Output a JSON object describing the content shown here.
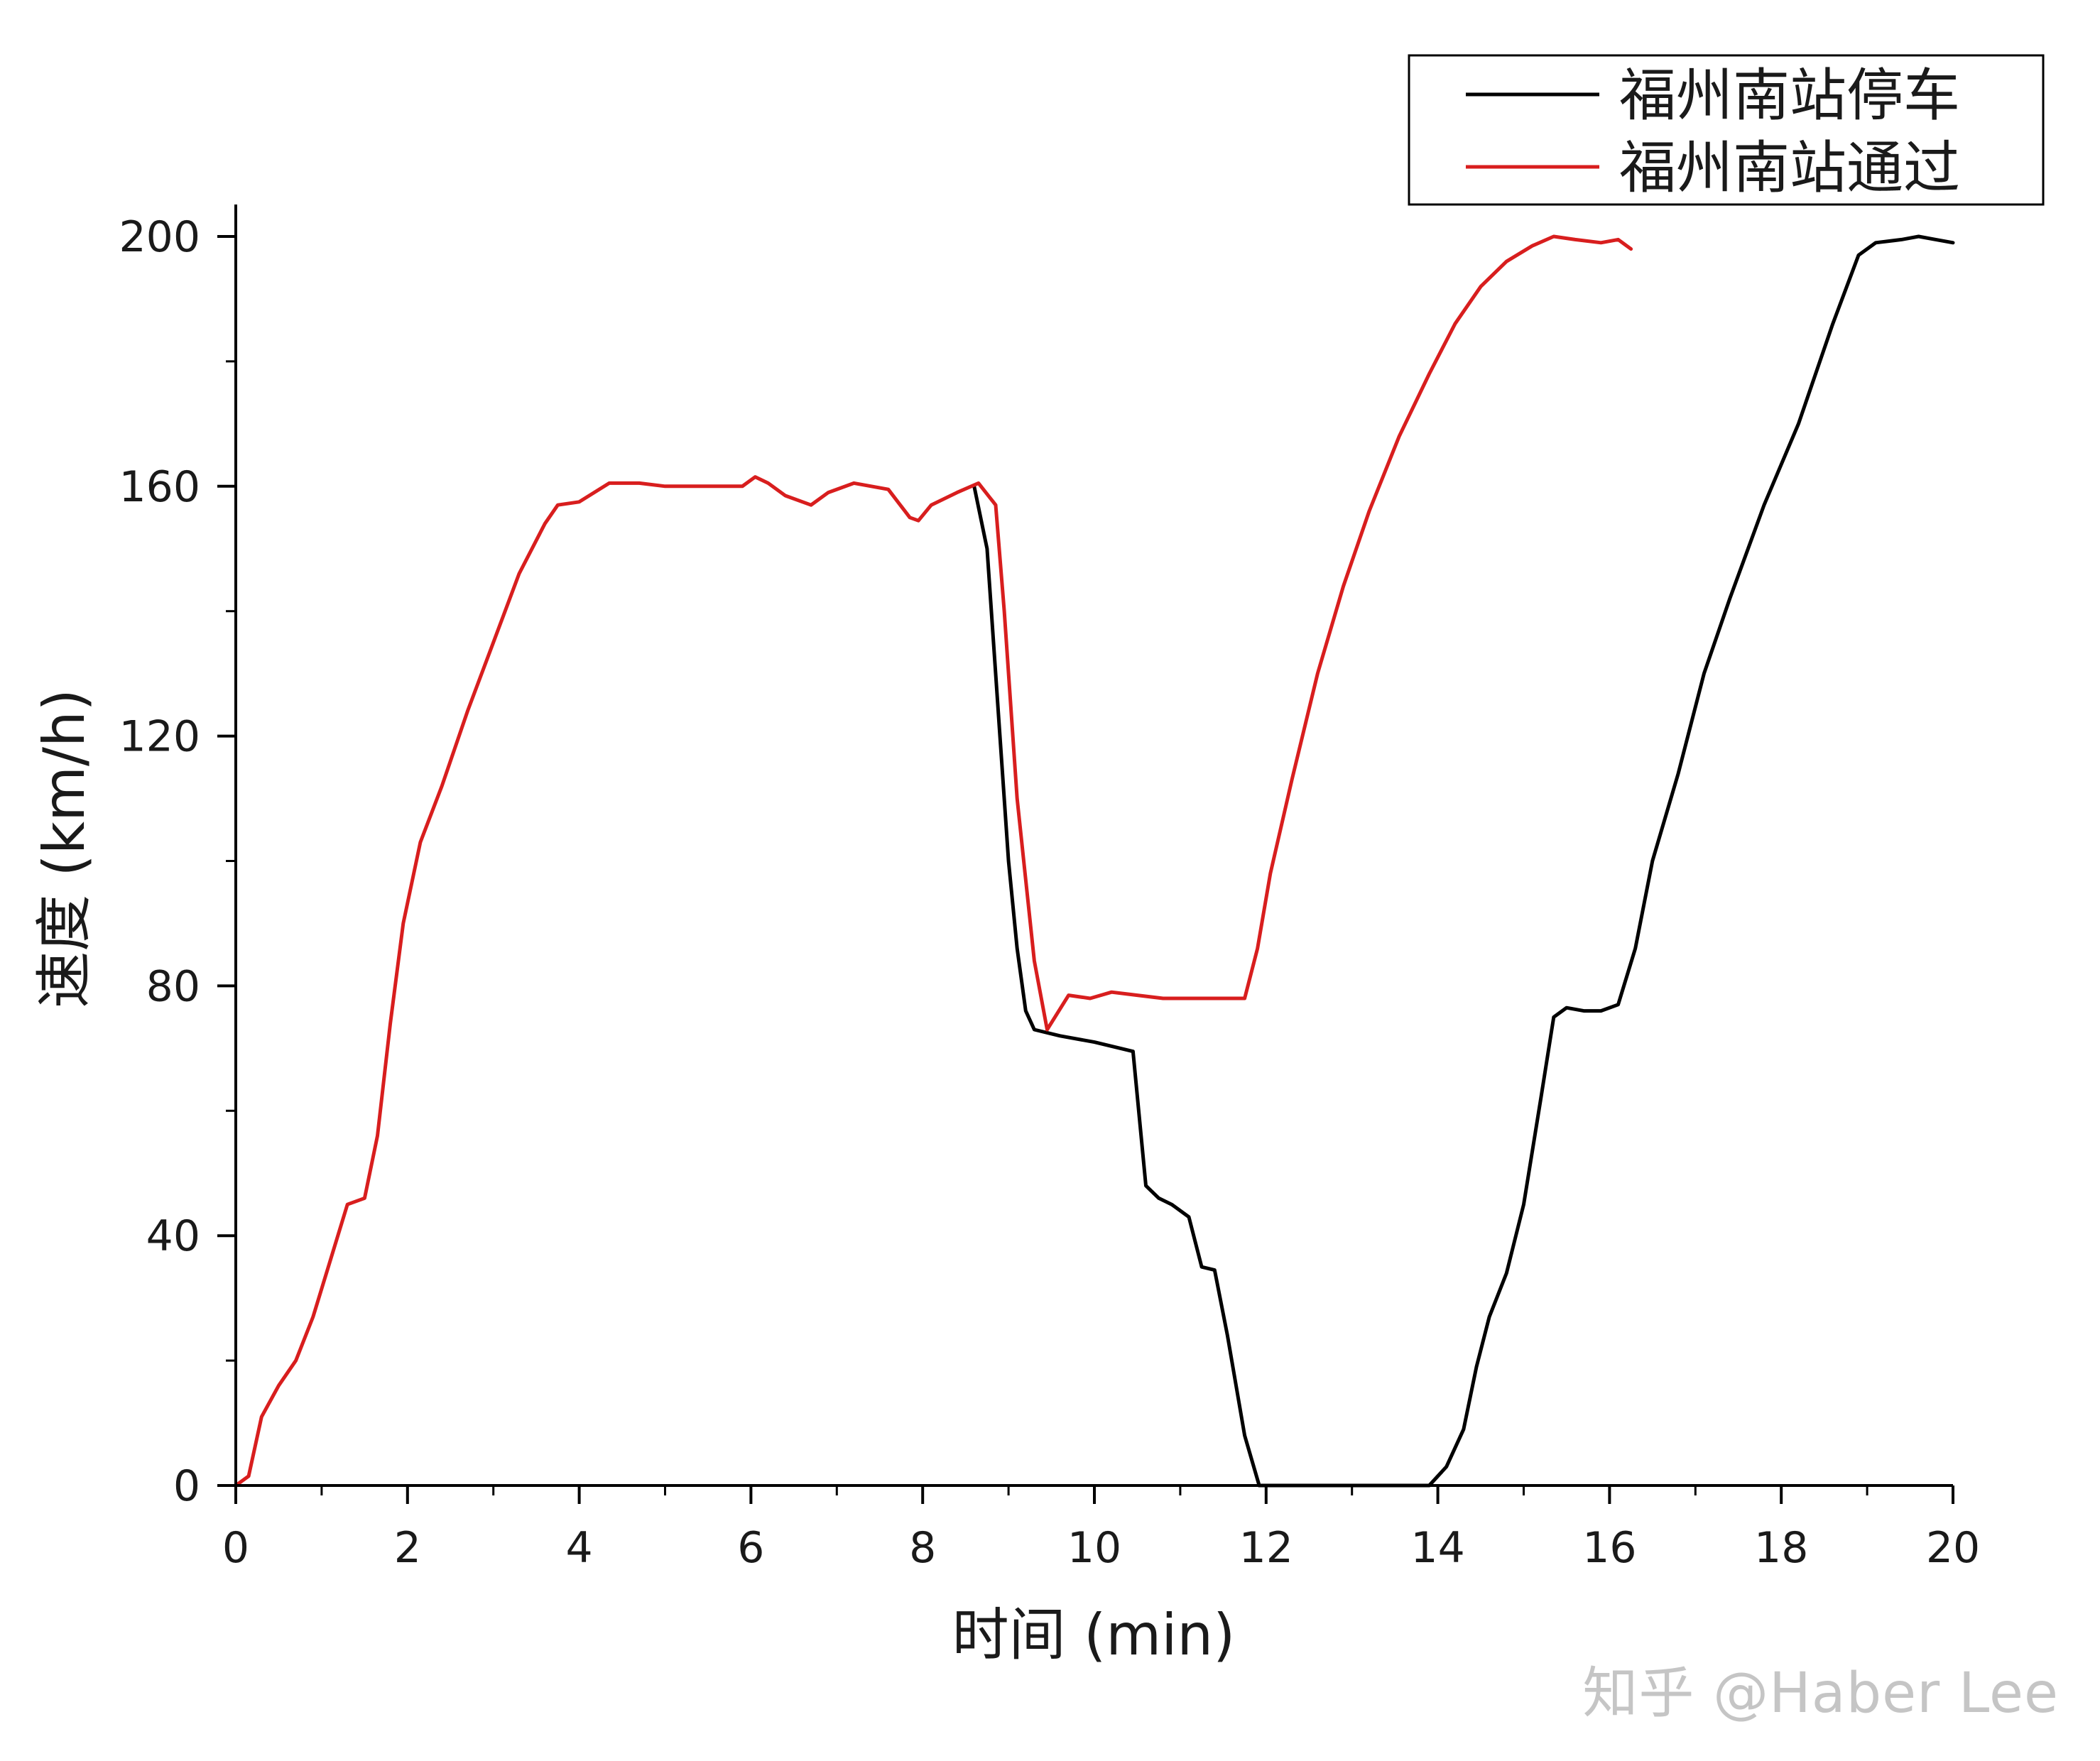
{
  "watermark": "知乎 @Haber Lee",
  "chart_data": {
    "type": "line",
    "title": "",
    "xlabel": "时间 (min)",
    "ylabel": "速度 (km/h)",
    "xlim": [
      0,
      20
    ],
    "ylim": [
      0,
      200
    ],
    "x_ticks": [
      0,
      2,
      4,
      6,
      8,
      10,
      12,
      14,
      16,
      18,
      20
    ],
    "x_tick_labels": [
      "0",
      "2",
      "4",
      "6",
      "8",
      "10",
      "12",
      "14",
      "16",
      "18",
      "20"
    ],
    "y_ticks": [
      0,
      40,
      80,
      120,
      160,
      200
    ],
    "y_tick_labels": [
      "0",
      "40",
      "80",
      "120",
      "160",
      "200"
    ],
    "grid": false,
    "legend_position": "top-right",
    "series": [
      {
        "name": "福州南站停车",
        "color": "#000000",
        "points": [
          [
            8.6,
            160
          ],
          [
            8.75,
            150
          ],
          [
            8.9,
            120
          ],
          [
            9.0,
            100
          ],
          [
            9.1,
            86
          ],
          [
            9.2,
            76
          ],
          [
            9.3,
            73
          ],
          [
            9.6,
            72
          ],
          [
            10.0,
            71
          ],
          [
            10.3,
            70
          ],
          [
            10.45,
            69.5
          ],
          [
            10.6,
            48
          ],
          [
            10.75,
            46
          ],
          [
            10.9,
            45
          ],
          [
            11.1,
            43
          ],
          [
            11.25,
            35
          ],
          [
            11.4,
            34.5
          ],
          [
            11.55,
            24
          ],
          [
            11.75,
            8
          ],
          [
            11.92,
            0
          ],
          [
            12.2,
            0
          ],
          [
            13.0,
            0
          ],
          [
            13.9,
            0
          ],
          [
            14.1,
            3
          ],
          [
            14.3,
            9
          ],
          [
            14.45,
            19
          ],
          [
            14.6,
            27
          ],
          [
            14.8,
            34
          ],
          [
            15.0,
            45
          ],
          [
            15.2,
            62
          ],
          [
            15.35,
            75
          ],
          [
            15.5,
            76.5
          ],
          [
            15.7,
            76
          ],
          [
            15.9,
            76
          ],
          [
            16.1,
            77
          ],
          [
            16.3,
            86
          ],
          [
            16.5,
            100
          ],
          [
            16.8,
            114
          ],
          [
            17.1,
            130
          ],
          [
            17.4,
            142
          ],
          [
            17.8,
            157
          ],
          [
            18.2,
            170
          ],
          [
            18.6,
            186
          ],
          [
            18.9,
            197
          ],
          [
            19.1,
            199
          ],
          [
            19.4,
            199.5
          ],
          [
            19.6,
            200
          ],
          [
            19.8,
            199.5
          ],
          [
            20.0,
            199
          ]
        ]
      },
      {
        "name": "福州南站通过",
        "color": "#d81e1e",
        "points": [
          [
            0.0,
            0
          ],
          [
            0.15,
            1.5
          ],
          [
            0.3,
            11
          ],
          [
            0.5,
            16
          ],
          [
            0.7,
            20
          ],
          [
            0.9,
            27
          ],
          [
            1.1,
            36
          ],
          [
            1.3,
            45
          ],
          [
            1.5,
            46
          ],
          [
            1.65,
            56
          ],
          [
            1.8,
            74
          ],
          [
            1.95,
            90
          ],
          [
            2.15,
            103
          ],
          [
            2.4,
            112
          ],
          [
            2.7,
            124
          ],
          [
            3.0,
            135
          ],
          [
            3.3,
            146
          ],
          [
            3.6,
            154
          ],
          [
            3.75,
            157
          ],
          [
            4.0,
            157.5
          ],
          [
            4.35,
            160.5
          ],
          [
            4.7,
            160.5
          ],
          [
            5.0,
            160
          ],
          [
            5.3,
            160
          ],
          [
            5.6,
            160
          ],
          [
            5.9,
            160
          ],
          [
            6.05,
            161.5
          ],
          [
            6.2,
            160.5
          ],
          [
            6.4,
            158.5
          ],
          [
            6.7,
            157
          ],
          [
            6.9,
            159
          ],
          [
            7.2,
            160.5
          ],
          [
            7.4,
            160
          ],
          [
            7.6,
            159.5
          ],
          [
            7.85,
            155
          ],
          [
            7.95,
            154.5
          ],
          [
            8.1,
            157
          ],
          [
            8.4,
            159
          ],
          [
            8.65,
            160.5
          ],
          [
            8.85,
            157
          ],
          [
            8.95,
            140
          ],
          [
            9.1,
            110
          ],
          [
            9.3,
            84
          ],
          [
            9.45,
            73
          ],
          [
            9.7,
            78.5
          ],
          [
            9.95,
            78
          ],
          [
            10.2,
            79
          ],
          [
            10.5,
            78.5
          ],
          [
            10.8,
            78
          ],
          [
            11.2,
            78
          ],
          [
            11.5,
            78
          ],
          [
            11.75,
            78
          ],
          [
            11.9,
            86
          ],
          [
            12.05,
            98
          ],
          [
            12.3,
            113
          ],
          [
            12.6,
            130
          ],
          [
            12.9,
            144
          ],
          [
            13.2,
            156
          ],
          [
            13.55,
            168
          ],
          [
            13.9,
            178
          ],
          [
            14.2,
            186
          ],
          [
            14.5,
            192
          ],
          [
            14.8,
            196
          ],
          [
            15.1,
            198.5
          ],
          [
            15.35,
            200
          ],
          [
            15.6,
            199.5
          ],
          [
            15.9,
            199
          ],
          [
            16.1,
            199.5
          ],
          [
            16.25,
            198
          ]
        ]
      }
    ]
  }
}
